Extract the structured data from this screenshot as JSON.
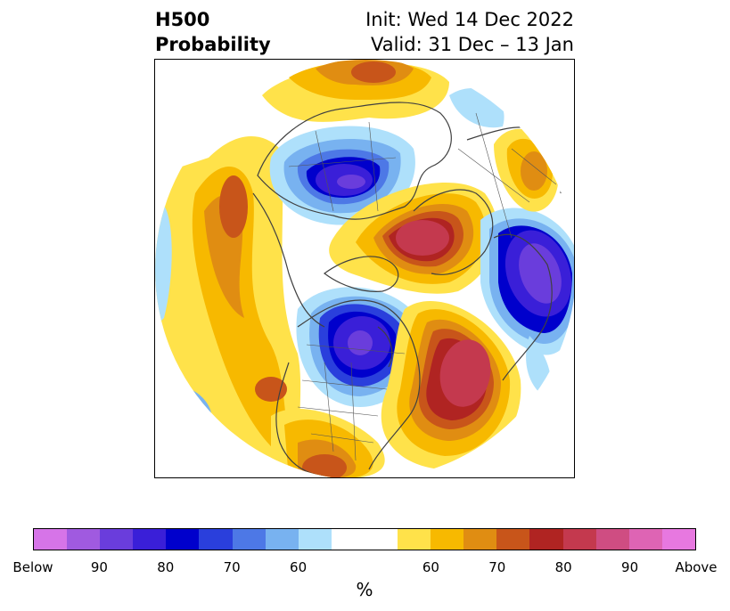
{
  "header": {
    "title_line1": "H500",
    "title_line2": "Probability",
    "init_text": "Init: Wed 14 Dec 2022",
    "valid_text": "Valid: 31 Dec – 13 Jan"
  },
  "colorbar": {
    "unit_label": "%",
    "colors": [
      "#d674e8",
      "#a05ae0",
      "#6a3ddc",
      "#3a1fd8",
      "#0000cc",
      "#2a3fdc",
      "#4d78e6",
      "#78b2f0",
      "#aee0fb",
      "#ffffff",
      "#ffffff",
      "#ffe24a",
      "#f7b900",
      "#e08d12",
      "#c8551a",
      "#b02422",
      "#c4394e",
      "#cf4d82",
      "#de64b4",
      "#e778e0"
    ],
    "ticks": [
      "Below",
      "90",
      "80",
      "70",
      "60",
      "60",
      "70",
      "80",
      "90",
      "Above"
    ]
  },
  "map": {
    "projection": "polar stereographic, North Pole",
    "features": [
      "probability-shading",
      "coastlines",
      "country-borders",
      "us-state-borders"
    ]
  }
}
